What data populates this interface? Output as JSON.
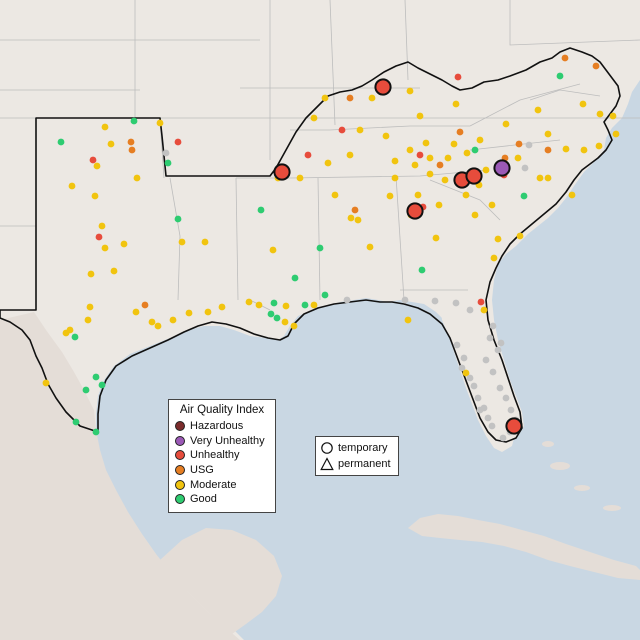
{
  "legend": {
    "title": "Air Quality Index",
    "items": [
      {
        "label": "Hazardous",
        "color": "#7b2c2c",
        "name": "hazardous"
      },
      {
        "label": "Very Unhealthy",
        "color": "#9b59b6",
        "name": "very-unhealthy"
      },
      {
        "label": "Unhealthy",
        "color": "#e74c3c",
        "name": "unhealthy"
      },
      {
        "label": "USG",
        "color": "#e67e22",
        "name": "usg"
      },
      {
        "label": "Moderate",
        "color": "#f1c40f",
        "name": "moderate"
      },
      {
        "label": "Good",
        "color": "#2ecc71",
        "name": "good"
      }
    ]
  },
  "shape_legend": {
    "items": [
      {
        "label": "temporary",
        "shape": "circle",
        "name": "temporary"
      },
      {
        "label": "permanent",
        "shape": "triangle",
        "name": "permanent"
      }
    ]
  },
  "colors": {
    "ocean": "#c9d7e3",
    "land": "#ede9e4",
    "land_south": "#e6e0db",
    "border": "#111111",
    "state_line": "#b9b9b9",
    "no_data": "#c2c2c2"
  }
}
